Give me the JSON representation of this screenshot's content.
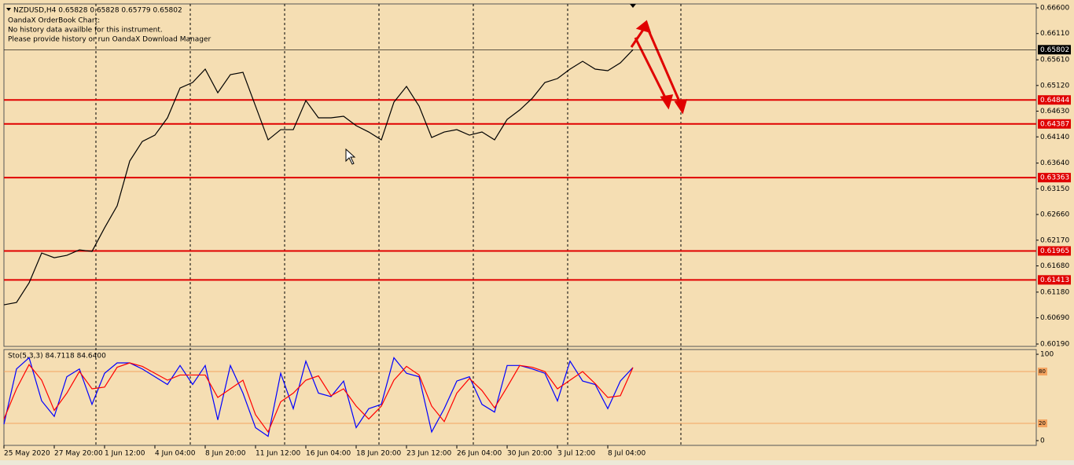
{
  "chart_data": [
    {
      "type": "line",
      "title": "NZDUSD,H4  0.65828 0.65828 0.65779 0.65802",
      "annotations": [
        "OandaX OrderBook Chart:",
        "No history data availble for this instrument.",
        "Please provide history or run OandaX Download Manager"
      ],
      "xlim": [
        0,
        82.06
      ],
      "xticks": [
        {
          "value": 0,
          "label": "25 May 2020"
        },
        {
          "value": 4,
          "label": "27 May 20:00"
        },
        {
          "value": 8,
          "label": "1 Jun 12:00"
        },
        {
          "value": 12,
          "label": "4 Jun 04:00"
        },
        {
          "value": 16,
          "label": "8 Jun 20:00"
        },
        {
          "value": 20,
          "label": "11 Jun 12:00"
        },
        {
          "value": 24,
          "label": "16 Jun 04:00"
        },
        {
          "value": 28,
          "label": "18 Jun 20:00"
        },
        {
          "value": 32,
          "label": "23 Jun 12:00"
        },
        {
          "value": 36,
          "label": "26 Jun 04:00"
        },
        {
          "value": 40,
          "label": "30 Jun 20:00"
        },
        {
          "value": 44,
          "label": "3 Jul 12:00"
        },
        {
          "value": 48,
          "label": "8 Jul 04:00"
        }
      ],
      "ylim": [
        0.60145,
        0.66675
      ],
      "yticks": [
        {
          "value": 0.666,
          "label": "0.66600"
        },
        {
          "value": 0.6611,
          "label": "0.66110"
        },
        {
          "value": 0.6561,
          "label": "0.65610"
        },
        {
          "value": 0.6512,
          "label": "0.65120"
        },
        {
          "value": 0.6463,
          "label": "0.64630"
        },
        {
          "value": 0.6414,
          "label": "0.64140"
        },
        {
          "value": 0.6364,
          "label": "0.63640"
        },
        {
          "value": 0.6315,
          "label": "0.63150"
        },
        {
          "value": 0.6266,
          "label": "0.62660"
        },
        {
          "value": 0.6217,
          "label": "0.62170"
        },
        {
          "value": 0.6168,
          "label": "0.61680"
        },
        {
          "value": 0.6118,
          "label": "0.61180"
        },
        {
          "value": 0.6069,
          "label": "0.60690"
        },
        {
          "value": 0.6019,
          "label": "0.60190"
        }
      ],
      "series": [
        {
          "color": "#000000",
          "values": [
            0.60938,
            0.60983,
            0.61357,
            0.61926,
            0.61836,
            0.61881,
            0.61986,
            0.61956,
            0.62406,
            0.62825,
            0.63679,
            0.64053,
            0.64173,
            0.64503,
            0.65072,
            0.65177,
            0.65432,
            0.64982,
            0.65327,
            0.65372,
            0.64727,
            0.64083,
            0.64278,
            0.64278,
            0.64832,
            0.64503,
            0.64503,
            0.64533,
            0.64353,
            0.64233,
            0.64083,
            0.64802,
            0.65102,
            0.64727,
            0.64128,
            0.64233,
            0.64278,
            0.64173,
            0.64233,
            0.64083,
            0.64473,
            0.64653,
            0.64877,
            0.65177,
            0.65252,
            0.65432,
            0.65581,
            0.65432,
            0.65402,
            0.65551,
            0.65802
          ]
        }
      ],
      "levels": [
        {
          "value": 0.64844,
          "color": "#e00000"
        },
        {
          "value": 0.64387,
          "color": "#e00000"
        },
        {
          "value": 0.63363,
          "color": "#e00000"
        },
        {
          "value": 0.61965,
          "color": "#e00000"
        },
        {
          "value": 0.61413,
          "color": "#e00000"
        }
      ],
      "last_price": 0.65802
    },
    {
      "type": "line",
      "title": "Sto(5,3,3) 84.7118 84.6400",
      "ylim": [
        -5.5,
        105.5
      ],
      "yticks": [
        0,
        100
      ],
      "levels": [
        80,
        20
      ],
      "series": [
        {
          "color": "#0000ff",
          "values": [
            19,
            83,
            96,
            46,
            28,
            74,
            83,
            42,
            78,
            90,
            90,
            83,
            74,
            65,
            87,
            65,
            87,
            24,
            87,
            55,
            15,
            5,
            78,
            37,
            92,
            55,
            51,
            69,
            15,
            37,
            42,
            96,
            78,
            74,
            10,
            37,
            69,
            74,
            42,
            33,
            87,
            87,
            83,
            78,
            46,
            92,
            69,
            65,
            37,
            69,
            84.7118
          ]
        },
        {
          "color": "#ff0000",
          "values": [
            25,
            60,
            88,
            70,
            35,
            55,
            80,
            60,
            62,
            85,
            90,
            86,
            78,
            70,
            76,
            76,
            76,
            50,
            60,
            70,
            30,
            10,
            45,
            55,
            70,
            75,
            52,
            60,
            40,
            25,
            40,
            70,
            86,
            76,
            40,
            22,
            55,
            72,
            58,
            38,
            62,
            87,
            85,
            80,
            60,
            70,
            80,
            66,
            50,
            52,
            84.64
          ]
        }
      ]
    }
  ]
}
